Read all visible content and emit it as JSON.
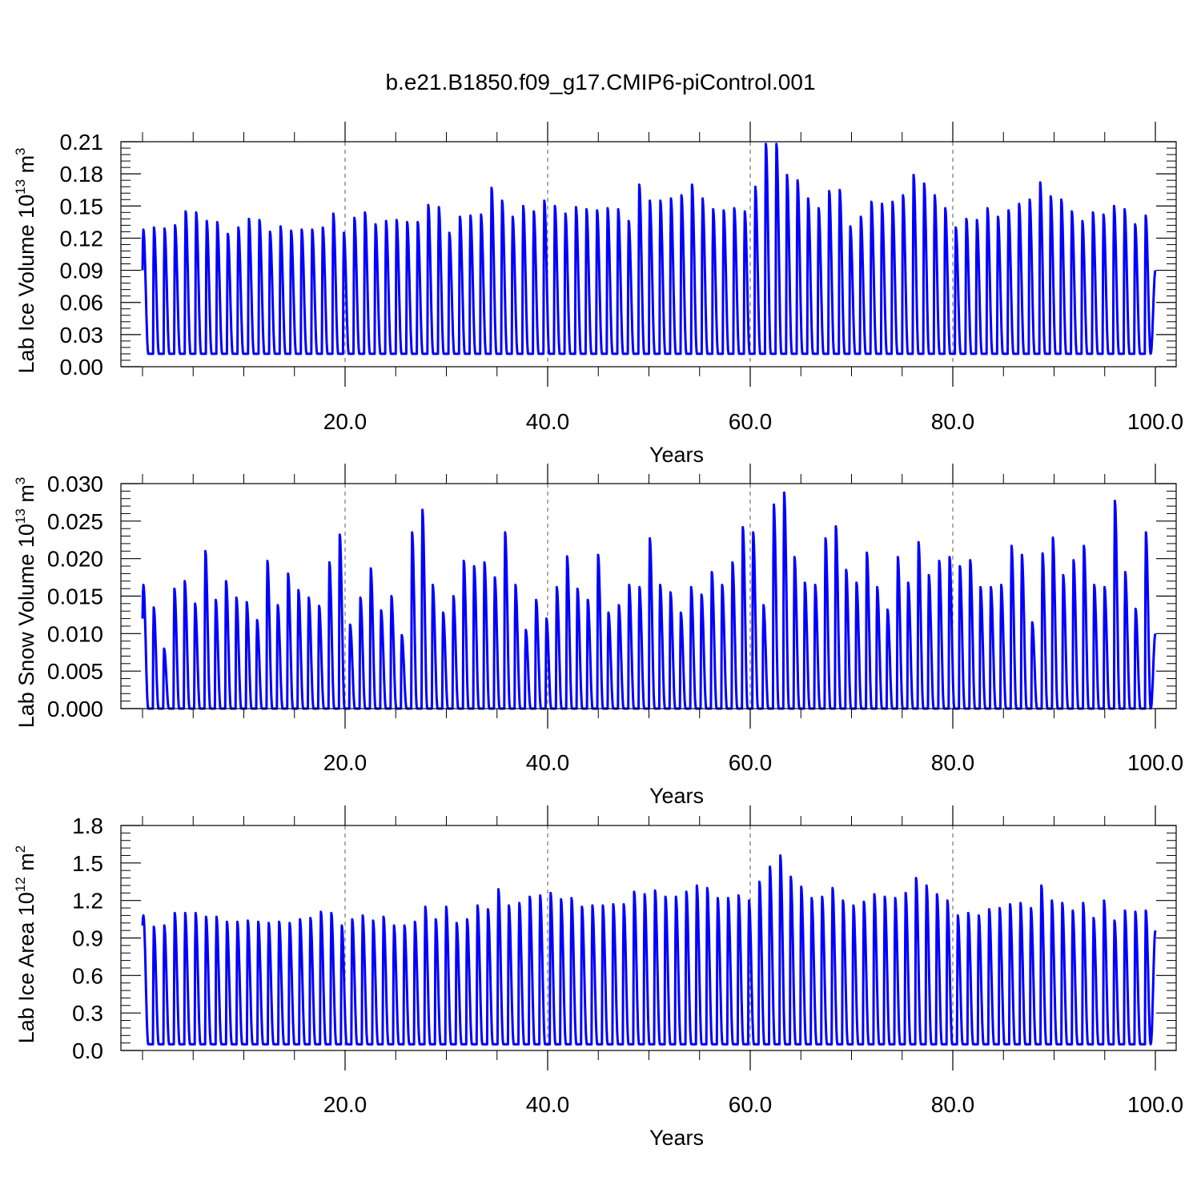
{
  "figure": {
    "title": "b.e21.B1850.f09_g17.CMIP6-piControl.001"
  },
  "colors": {
    "series": "#0000ff",
    "axis": "#000000",
    "gridline": "#555555"
  },
  "chart_data": [
    {
      "type": "line",
      "ylabel_base": "Lab Ice Volume 10",
      "ylabel_exp": "13",
      "ylabel_unit": " m",
      "ylabel_unit_exp": "3",
      "xlabel": "Years",
      "xlim": [
        0,
        100
      ],
      "ylim": [
        0,
        0.21
      ],
      "x_ticks": [
        20,
        40,
        60,
        80,
        100
      ],
      "x_tick_labels": [
        "20.0",
        "40.0",
        "60.0",
        "80.0",
        "100.0"
      ],
      "y_ticks": [
        0,
        0.03,
        0.06,
        0.09,
        0.12,
        0.15,
        0.18,
        0.21
      ],
      "y_tick_labels": [
        "0.00",
        "0.03",
        "0.06",
        "0.09",
        "0.12",
        "0.15",
        "0.18",
        "0.21"
      ],
      "grid": "vertical dashed at major x ticks",
      "series": [
        {
          "cycle": "annual",
          "x_start": 0,
          "start_value": 0.09,
          "end_value": 0.09,
          "annual_minima": 0.012,
          "annual_maxima": [
            0.128,
            0.13,
            0.129,
            0.132,
            0.145,
            0.144,
            0.136,
            0.135,
            0.124,
            0.13,
            0.138,
            0.137,
            0.126,
            0.131,
            0.127,
            0.128,
            0.128,
            0.13,
            0.143,
            0.125,
            0.139,
            0.144,
            0.133,
            0.136,
            0.137,
            0.135,
            0.135,
            0.151,
            0.149,
            0.125,
            0.14,
            0.141,
            0.142,
            0.167,
            0.155,
            0.14,
            0.15,
            0.145,
            0.155,
            0.15,
            0.143,
            0.149,
            0.147,
            0.146,
            0.148,
            0.147,
            0.136,
            0.17,
            0.155,
            0.155,
            0.157,
            0.16,
            0.17,
            0.157,
            0.147,
            0.146,
            0.148,
            0.145,
            0.168,
            0.208,
            0.208,
            0.179,
            0.174,
            0.157,
            0.148,
            0.164,
            0.165,
            0.131,
            0.14,
            0.154,
            0.152,
            0.154,
            0.16,
            0.179,
            0.171,
            0.16,
            0.148,
            0.13,
            0.138,
            0.137,
            0.148,
            0.14,
            0.146,
            0.152,
            0.156,
            0.172,
            0.159,
            0.156,
            0.145,
            0.136,
            0.144,
            0.142,
            0.15,
            0.147,
            0.133,
            0.141
          ]
        }
      ]
    },
    {
      "type": "line",
      "ylabel_base": "Lab Snow Volume 10",
      "ylabel_exp": "13",
      "ylabel_unit": " m",
      "ylabel_unit_exp": "3",
      "xlabel": "Years",
      "xlim": [
        0,
        100
      ],
      "ylim": [
        0,
        0.03
      ],
      "x_ticks": [
        20,
        40,
        60,
        80,
        100
      ],
      "x_tick_labels": [
        "20.0",
        "40.0",
        "60.0",
        "80.0",
        "100.0"
      ],
      "y_ticks": [
        0,
        0.005,
        0.01,
        0.015,
        0.02,
        0.025,
        0.03
      ],
      "y_tick_labels": [
        "0.000",
        "0.005",
        "0.010",
        "0.015",
        "0.020",
        "0.025",
        "0.030"
      ],
      "grid": "vertical dashed at major x ticks",
      "series": [
        {
          "cycle": "annual",
          "x_start": 0,
          "start_value": 0.012,
          "end_value": 0.01,
          "annual_minima": 0.0,
          "annual_maxima": [
            0.0165,
            0.0135,
            0.008,
            0.016,
            0.017,
            0.014,
            0.021,
            0.0145,
            0.017,
            0.0148,
            0.0142,
            0.0118,
            0.0197,
            0.0138,
            0.018,
            0.0158,
            0.0148,
            0.0137,
            0.0195,
            0.0232,
            0.0112,
            0.0148,
            0.0187,
            0.0131,
            0.015,
            0.0098,
            0.0235,
            0.0265,
            0.0165,
            0.0128,
            0.015,
            0.0197,
            0.019,
            0.0195,
            0.0175,
            0.0235,
            0.0165,
            0.0105,
            0.0145,
            0.012,
            0.0162,
            0.0203,
            0.016,
            0.0145,
            0.0205,
            0.0128,
            0.0138,
            0.0165,
            0.0162,
            0.0227,
            0.0165,
            0.0155,
            0.0128,
            0.0162,
            0.0152,
            0.0182,
            0.0165,
            0.0195,
            0.0242,
            0.0235,
            0.0138,
            0.0272,
            0.0288,
            0.0202,
            0.0168,
            0.0165,
            0.0227,
            0.0243,
            0.0185,
            0.0168,
            0.0208,
            0.0162,
            0.0132,
            0.0202,
            0.0168,
            0.0222,
            0.0178,
            0.0197,
            0.0202,
            0.019,
            0.0198,
            0.0162,
            0.0162,
            0.0165,
            0.0217,
            0.0205,
            0.0115,
            0.0207,
            0.0228,
            0.0178,
            0.0198,
            0.0217,
            0.0165,
            0.0162,
            0.0277,
            0.0182,
            0.0133,
            0.0235
          ]
        }
      ]
    },
    {
      "type": "line",
      "ylabel_base": "Lab Ice Area 10",
      "ylabel_exp": "12",
      "ylabel_unit": " m",
      "ylabel_unit_exp": "2",
      "xlabel": "Years",
      "xlim": [
        0,
        100
      ],
      "ylim": [
        0,
        1.8
      ],
      "x_ticks": [
        20,
        40,
        60,
        80,
        100
      ],
      "x_tick_labels": [
        "20.0",
        "40.0",
        "60.0",
        "80.0",
        "100.0"
      ],
      "y_ticks": [
        0,
        0.3,
        0.6,
        0.9,
        1.2,
        1.5,
        1.8
      ],
      "y_tick_labels": [
        "0.0",
        "0.3",
        "0.6",
        "0.9",
        "1.2",
        "1.5",
        "1.8"
      ],
      "grid": "vertical dashed at major x ticks",
      "series": [
        {
          "cycle": "annual",
          "x_start": 0,
          "start_value": 1.0,
          "end_value": 0.96,
          "annual_minima": 0.05,
          "annual_maxima": [
            1.08,
            0.99,
            1.0,
            1.1,
            1.1,
            1.1,
            1.07,
            1.07,
            1.03,
            1.03,
            1.04,
            1.03,
            1.02,
            1.03,
            1.02,
            1.05,
            1.06,
            1.11,
            1.1,
            1.0,
            1.05,
            1.08,
            1.04,
            1.07,
            1.0,
            1.0,
            1.03,
            1.15,
            1.05,
            1.15,
            1.02,
            1.05,
            1.16,
            1.13,
            1.29,
            1.16,
            1.18,
            1.23,
            1.24,
            1.26,
            1.21,
            1.22,
            1.15,
            1.16,
            1.16,
            1.17,
            1.17,
            1.27,
            1.25,
            1.28,
            1.23,
            1.23,
            1.27,
            1.32,
            1.3,
            1.22,
            1.22,
            1.24,
            1.2,
            1.35,
            1.47,
            1.56,
            1.39,
            1.31,
            1.22,
            1.23,
            1.3,
            1.2,
            1.16,
            1.19,
            1.25,
            1.23,
            1.22,
            1.26,
            1.38,
            1.32,
            1.25,
            1.2,
            1.08,
            1.1,
            1.08,
            1.13,
            1.14,
            1.17,
            1.18,
            1.14,
            1.32,
            1.2,
            1.18,
            1.12,
            1.18,
            1.06,
            1.2,
            1.04,
            1.12,
            1.11,
            1.12
          ]
        }
      ]
    }
  ]
}
